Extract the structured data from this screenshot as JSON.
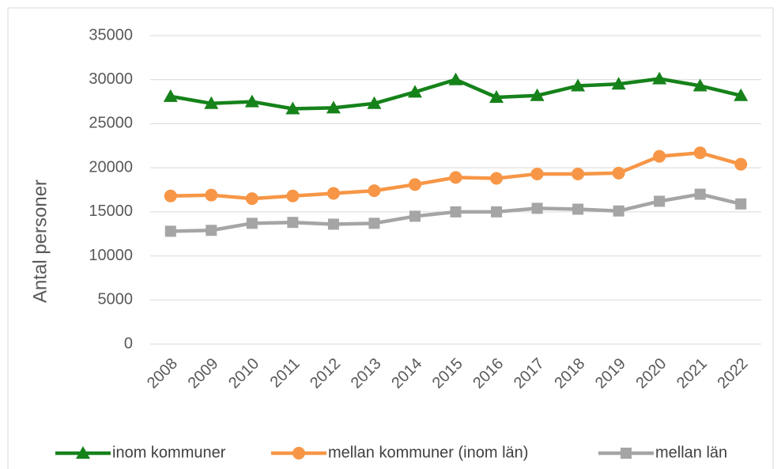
{
  "chart_data": {
    "type": "line",
    "y_label": "Antal personer",
    "categories": [
      "2008",
      "2009",
      "2010",
      "2011",
      "2012",
      "2013",
      "2014",
      "2015",
      "2016",
      "2017",
      "2018",
      "2019",
      "2020",
      "2021",
      "2022"
    ],
    "series": [
      {
        "name": "inom kommuner",
        "color": "#15821a",
        "marker": "triangle",
        "values": [
          28100,
          27300,
          27500,
          26700,
          26800,
          27300,
          28600,
          30000,
          28000,
          28200,
          29300,
          29500,
          30100,
          29300,
          28200
        ]
      },
      {
        "name": "mellan kommuner (inom län)",
        "color": "#f79646",
        "marker": "circle",
        "values": [
          16800,
          16900,
          16500,
          16800,
          17100,
          17400,
          18100,
          18900,
          18800,
          19300,
          19300,
          19400,
          21300,
          21700,
          20400
        ]
      },
      {
        "name": "mellan län",
        "color": "#a5a5a5",
        "marker": "square",
        "values": [
          12800,
          12900,
          13700,
          13800,
          13600,
          13700,
          14500,
          15000,
          15000,
          15400,
          15300,
          15100,
          16200,
          17000,
          15900
        ]
      }
    ],
    "ylim": [
      0,
      35000
    ],
    "yticks": [
      0,
      5000,
      10000,
      15000,
      20000,
      25000,
      30000,
      35000
    ],
    "grid": true,
    "legend": "bottom"
  }
}
